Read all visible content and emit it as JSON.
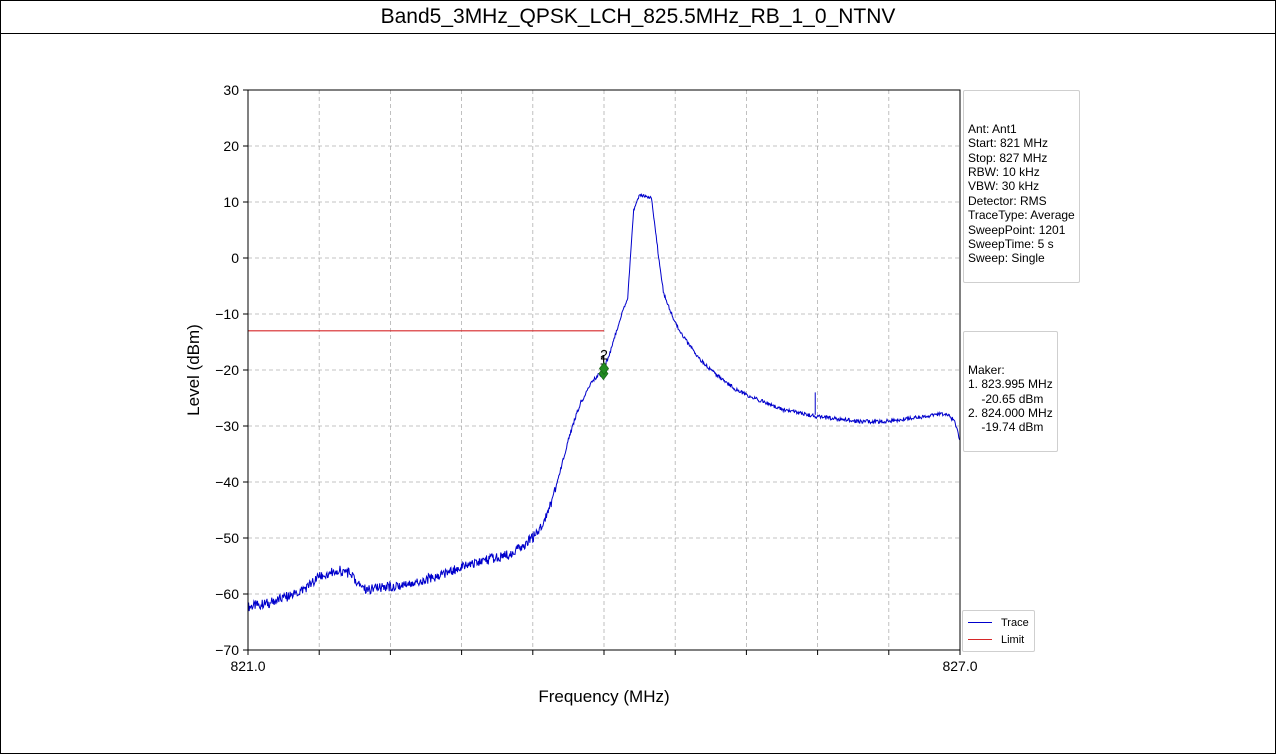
{
  "chart_data": {
    "type": "line",
    "title": "Band5_3MHz_QPSK_LCH_825.5MHz_RB_1_0_NTNV",
    "xlabel": "Frequency (MHz)",
    "ylabel": "Level (dBm)",
    "xlim": [
      821.0,
      827.0
    ],
    "ylim": [
      -70,
      30
    ],
    "xticks": [
      821.0,
      827.0
    ],
    "xtick_labels": [
      "821.0",
      "827.0"
    ],
    "yticks": [
      30,
      20,
      10,
      0,
      -10,
      -20,
      -30,
      -40,
      -50,
      -60,
      -70
    ],
    "ytick_labels": [
      "30",
      "20",
      "10",
      "0",
      "−10",
      "−20",
      "−30",
      "−40",
      "−50",
      "−60",
      "−70"
    ],
    "grid": true,
    "legend_position": "lower-right",
    "series": [
      {
        "name": "Trace",
        "color": "#0000cc",
        "x": [
          821.0,
          821.1,
          821.2,
          821.3,
          821.4,
          821.5,
          821.55,
          821.6,
          821.65,
          821.7,
          821.75,
          821.8,
          821.85,
          821.9,
          821.95,
          822.0,
          822.1,
          822.2,
          822.3,
          822.4,
          822.5,
          822.6,
          822.7,
          822.8,
          822.9,
          823.0,
          823.1,
          823.2,
          823.3,
          823.4,
          823.45,
          823.5,
          823.55,
          823.6,
          823.65,
          823.7,
          823.75,
          823.8,
          823.85,
          823.9,
          823.95,
          823.995,
          824.0,
          824.05,
          824.1,
          824.15,
          824.2,
          824.25,
          824.3,
          824.35,
          824.4,
          824.45,
          824.5,
          824.55,
          824.6,
          824.65,
          824.7,
          824.75,
          824.8,
          824.9,
          825.0,
          825.1,
          825.2,
          825.3,
          825.4,
          825.5,
          825.6,
          825.7,
          825.8,
          825.9,
          826.0,
          826.1,
          826.2,
          826.3,
          826.4,
          826.5,
          826.6,
          826.7,
          826.8,
          826.85,
          826.9,
          826.95,
          827.0
        ],
        "y": [
          -62.3,
          -61.9,
          -61.5,
          -60.7,
          -60.0,
          -58.7,
          -57.9,
          -57.0,
          -56.5,
          -56.1,
          -55.8,
          -55.9,
          -56.3,
          -57.5,
          -58.4,
          -59.2,
          -59.0,
          -58.6,
          -58.3,
          -57.9,
          -57.4,
          -56.8,
          -56.0,
          -55.2,
          -54.6,
          -54.0,
          -53.5,
          -53.0,
          -51.5,
          -50.0,
          -48.5,
          -46.5,
          -44.0,
          -40.5,
          -36.5,
          -32.5,
          -29.0,
          -26.0,
          -24.0,
          -22.0,
          -20.9,
          -20.65,
          -19.74,
          -17.0,
          -13.5,
          -10.0,
          -7.0,
          8.5,
          11.3,
          11.0,
          10.8,
          2.0,
          -6.0,
          -9.0,
          -11.5,
          -13.5,
          -15.0,
          -16.5,
          -18.0,
          -20.0,
          -21.8,
          -23.3,
          -24.5,
          -25.3,
          -26.2,
          -27.0,
          -27.5,
          -28.0,
          -28.3,
          -28.6,
          -28.8,
          -29.1,
          -29.2,
          -29.2,
          -29.1,
          -28.8,
          -28.6,
          -28.3,
          -27.9,
          -27.8,
          -28.1,
          -29.0,
          -32.5
        ]
      },
      {
        "name": "Limit",
        "color": "#d62728",
        "x": [
          821.0,
          824.0
        ],
        "y": [
          -13.0,
          -13.0
        ]
      }
    ],
    "markers": [
      {
        "label": "1",
        "x": 823.995,
        "y": -20.65,
        "color": "#228b22"
      },
      {
        "label": "2",
        "x": 824.0,
        "y": -19.74,
        "color": "#228b22"
      }
    ]
  },
  "info_box": {
    "lines": [
      "Ant: Ant1",
      "Start: 821 MHz",
      "Stop: 827 MHz",
      "RBW: 10 kHz",
      "VBW: 30 kHz",
      "Detector: RMS",
      "TraceType: Average",
      "SweepPoint: 1201",
      "SweepTime: 5 s",
      "Sweep: Single"
    ]
  },
  "marker_box": {
    "lines": [
      "Maker:",
      "1. 823.995 MHz",
      "    -20.65 dBm",
      "2. 824.000 MHz",
      "    -19.74 dBm"
    ]
  },
  "legend": {
    "items": [
      {
        "label": "Trace",
        "color": "#0000cc"
      },
      {
        "label": "Limit",
        "color": "#d62728"
      }
    ]
  }
}
